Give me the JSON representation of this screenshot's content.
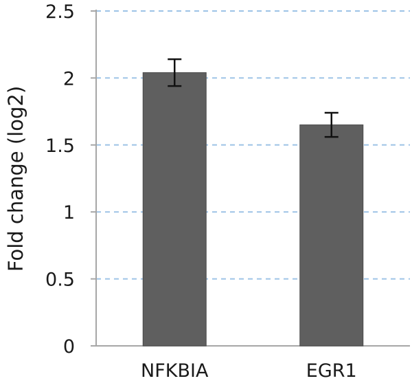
{
  "chart_data": {
    "type": "bar",
    "title": "",
    "xlabel": "",
    "ylabel": "Fold change (log2)",
    "categories": [
      "NFKBIA",
      "EGR1"
    ],
    "values": [
      2.04,
      1.65
    ],
    "errors": [
      0.1,
      0.09
    ],
    "ylim": [
      0,
      2.5
    ],
    "yticks": [
      "0",
      "0.5",
      "1",
      "1.5",
      "2",
      "2.5"
    ],
    "grid": "horizontal dashed",
    "legend": "none",
    "colors": {
      "bar": "#5f5f5f",
      "grid": "#9dc3e6",
      "axis": "#a6a6a6",
      "error": "#111111"
    }
  }
}
